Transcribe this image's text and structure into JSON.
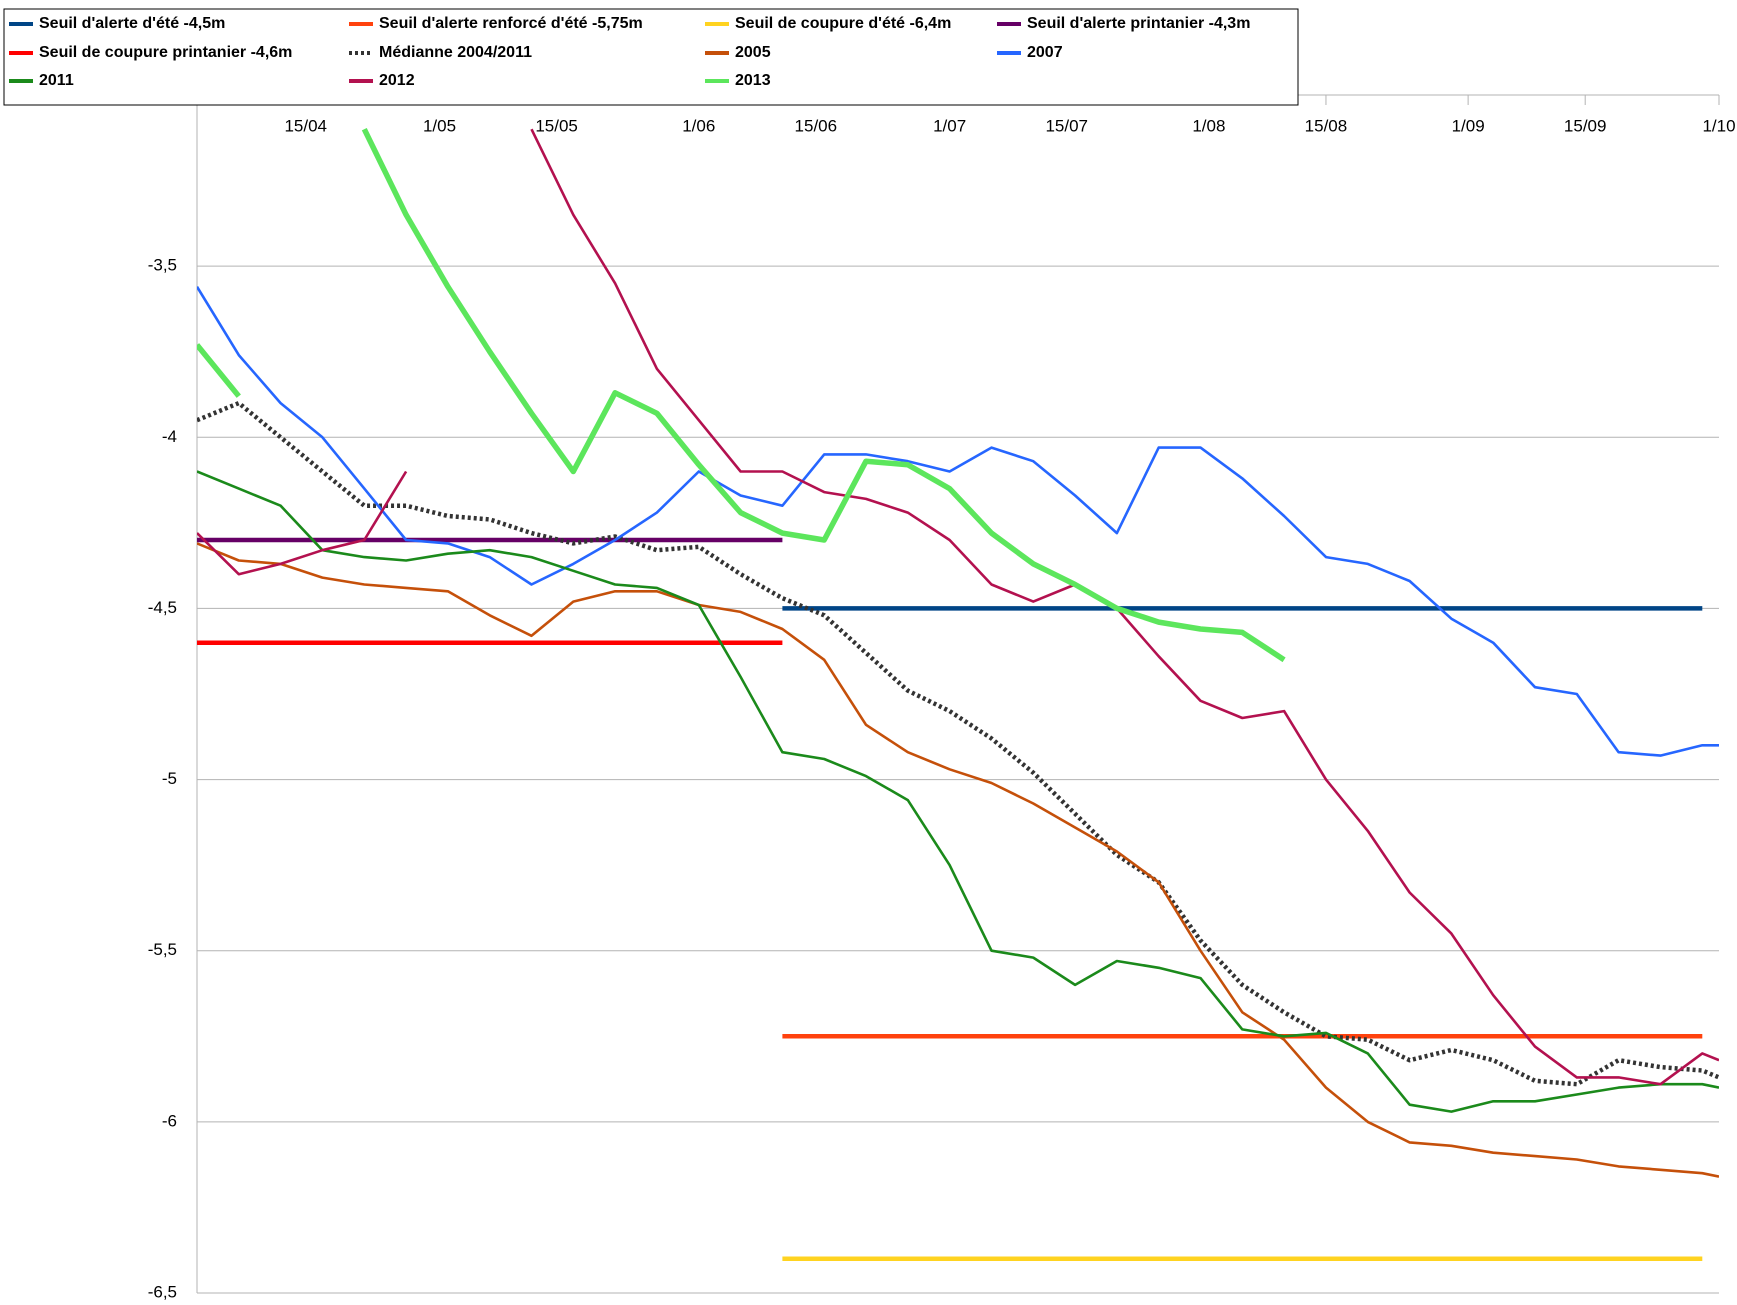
{
  "chart_data": {
    "type": "line",
    "x": [
      "2/04",
      "7/04",
      "12/04",
      "17/04",
      "22/04",
      "27/04",
      "2/05",
      "7/05",
      "12/05",
      "17/05",
      "22/05",
      "27/05",
      "1/06",
      "6/06",
      "11/06",
      "16/06",
      "21/06",
      "26/06",
      "1/07",
      "6/07",
      "11/07",
      "16/07",
      "21/07",
      "26/07",
      "31/07",
      "5/08",
      "10/08",
      "15/08",
      "20/08",
      "25/08",
      "30/08",
      "4/09",
      "9/09",
      "14/09",
      "19/09",
      "24/09",
      "29/09",
      "1/10"
    ],
    "xlim": [
      "2/04",
      "1/10"
    ],
    "xticks": [
      "15/04",
      "1/05",
      "15/05",
      "1/06",
      "15/06",
      "1/07",
      "15/07",
      "1/08",
      "15/08",
      "1/09",
      "15/09",
      "1/10"
    ],
    "ylim": [
      -6.5,
      -3
    ],
    "yticks": [
      {
        "value": -3.5,
        "label": "-3,5"
      },
      -4,
      {
        "value": -4.5,
        "label": "-4,5"
      },
      -5,
      {
        "value": -5.5,
        "label": "-5,5"
      },
      -6,
      {
        "value": -6.5,
        "label": "-6,5"
      }
    ],
    "grid": true,
    "legend": "top-left",
    "series": [
      {
        "name": "Seuil d'alerte d'été -4,5m",
        "color": "#004586",
        "values": [
          null,
          null,
          null,
          null,
          null,
          null,
          null,
          null,
          null,
          null,
          null,
          null,
          null,
          null,
          -4.5,
          -4.5,
          -4.5,
          -4.5,
          -4.5,
          -4.5,
          -4.5,
          -4.5,
          -4.5,
          -4.5,
          -4.5,
          -4.5,
          -4.5,
          -4.5,
          -4.5,
          -4.5,
          -4.5,
          -4.5,
          -4.5,
          -4.5,
          -4.5,
          -4.5,
          -4.5,
          null
        ]
      },
      {
        "name": "Seuil d'alerte renforcé d'été -5,75m",
        "color": "#ff420e",
        "values": [
          null,
          null,
          null,
          null,
          null,
          null,
          null,
          null,
          null,
          null,
          null,
          null,
          null,
          null,
          -5.75,
          -5.75,
          -5.75,
          -5.75,
          -5.75,
          -5.75,
          -5.75,
          -5.75,
          -5.75,
          -5.75,
          -5.75,
          -5.75,
          -5.75,
          -5.75,
          -5.75,
          -5.75,
          -5.75,
          -5.75,
          -5.75,
          -5.75,
          -5.75,
          -5.75,
          -5.75,
          null
        ]
      },
      {
        "name": "Seuil de coupure d'été -6,4m",
        "color": "#ffd320",
        "values": [
          null,
          null,
          null,
          null,
          null,
          null,
          null,
          null,
          null,
          null,
          null,
          null,
          null,
          null,
          -6.4,
          -6.4,
          -6.4,
          -6.4,
          -6.4,
          -6.4,
          -6.4,
          -6.4,
          -6.4,
          -6.4,
          -6.4,
          -6.4,
          -6.4,
          -6.4,
          -6.4,
          -6.4,
          -6.4,
          -6.4,
          -6.4,
          -6.4,
          -6.4,
          -6.4,
          -6.4,
          null
        ]
      },
      {
        "name": "Seuil d'alerte printanier -4,3m",
        "color": "#660066",
        "values": [
          -4.3,
          -4.3,
          -4.3,
          -4.3,
          -4.3,
          -4.3,
          -4.3,
          -4.3,
          -4.3,
          -4.3,
          -4.3,
          -4.3,
          -4.3,
          -4.3,
          -4.3,
          null,
          null,
          null,
          null,
          null,
          null,
          null,
          null,
          null,
          null,
          null,
          null,
          null,
          null,
          null,
          null,
          null,
          null,
          null,
          null,
          null,
          null,
          null
        ]
      },
      {
        "name": "Seuil de coupure printanier -4,6m",
        "color": "#ff0000",
        "values": [
          -4.6,
          -4.6,
          -4.6,
          -4.6,
          -4.6,
          -4.6,
          -4.6,
          -4.6,
          -4.6,
          -4.6,
          -4.6,
          -4.6,
          -4.6,
          -4.6,
          -4.6,
          null,
          null,
          null,
          null,
          null,
          null,
          null,
          null,
          null,
          null,
          null,
          null,
          null,
          null,
          null,
          null,
          null,
          null,
          null,
          null,
          null,
          null,
          null
        ]
      },
      {
        "name": "Médianne 2004/2011",
        "color": "#333333",
        "dashed": true,
        "values": [
          -3.95,
          -3.9,
          -4.0,
          -4.1,
          -4.2,
          -4.2,
          -4.23,
          -4.24,
          -4.28,
          -4.31,
          -4.29,
          -4.33,
          -4.32,
          -4.4,
          -4.47,
          -4.52,
          -4.63,
          -4.74,
          -4.8,
          -4.88,
          -4.98,
          -5.1,
          -5.22,
          -5.3,
          -5.47,
          -5.6,
          -5.68,
          -5.75,
          -5.76,
          -5.82,
          -5.79,
          -5.82,
          -5.88,
          -5.89,
          -5.82,
          -5.84,
          -5.85,
          -5.87
        ]
      },
      {
        "name": "2005",
        "color": "#c5500a",
        "values": [
          -4.31,
          -4.36,
          -4.37,
          -4.41,
          -4.43,
          -4.44,
          -4.45,
          -4.52,
          -4.58,
          -4.48,
          -4.45,
          -4.45,
          -4.49,
          -4.51,
          -4.56,
          -4.65,
          -4.84,
          -4.92,
          -4.97,
          -5.01,
          -5.07,
          -5.14,
          -5.21,
          -5.3,
          -5.5,
          -5.68,
          -5.76,
          -5.9,
          -6.0,
          -6.06,
          -6.07,
          -6.09,
          -6.1,
          -6.11,
          -6.13,
          -6.14,
          -6.15,
          -6.16
        ]
      },
      {
        "name": "2007",
        "color": "#2666ff",
        "values": [
          -3.56,
          -3.76,
          -3.9,
          -4.0,
          -4.15,
          -4.3,
          -4.31,
          -4.35,
          -4.43,
          -4.37,
          -4.3,
          -4.22,
          -4.1,
          -4.17,
          -4.2,
          -4.05,
          -4.05,
          -4.07,
          -4.1,
          -4.03,
          -4.07,
          -4.17,
          -4.28,
          -4.03,
          -4.03,
          -4.12,
          -4.23,
          -4.35,
          -4.37,
          -4.42,
          -4.53,
          -4.6,
          -4.73,
          -4.75,
          -4.92,
          -4.93,
          -4.9,
          -4.9
        ]
      },
      {
        "name": "2011",
        "color": "#1b8a1b",
        "values": [
          -4.1,
          -4.15,
          -4.2,
          -4.33,
          -4.35,
          -4.36,
          -4.34,
          -4.33,
          -4.35,
          -4.39,
          -4.43,
          -4.44,
          -4.49,
          -4.7,
          -4.92,
          -4.94,
          -4.99,
          -5.06,
          -5.25,
          -5.5,
          -5.52,
          -5.6,
          -5.53,
          -5.55,
          -5.58,
          -5.73,
          -5.75,
          -5.74,
          -5.8,
          -5.95,
          -5.97,
          -5.94,
          -5.94,
          -5.92,
          -5.9,
          -5.89,
          -5.89,
          -5.9
        ]
      },
      {
        "name": "2012",
        "color": "#b3114f",
        "values": [
          -4.28,
          -4.4,
          -4.37,
          -4.33,
          -4.3,
          -4.1,
          null,
          null,
          -3.1,
          -3.35,
          -3.55,
          -3.8,
          -3.95,
          -4.1,
          -4.1,
          -4.16,
          -4.18,
          -4.22,
          -4.3,
          -4.43,
          -4.48,
          -4.43,
          -4.5,
          -4.64,
          -4.77,
          -4.82,
          -4.8,
          -5.0,
          -5.15,
          -5.33,
          -5.45,
          -5.63,
          -5.78,
          -5.87,
          -5.87,
          -5.89,
          -5.8,
          -5.82
        ]
      },
      {
        "name": "2013",
        "color": "#5ce65c",
        "thick": true,
        "values": [
          -3.73,
          -3.88,
          null,
          null,
          -3.1,
          -3.35,
          -3.56,
          -3.75,
          -3.93,
          -4.1,
          -3.87,
          -3.93,
          -4.08,
          -4.22,
          -4.28,
          -4.3,
          -4.07,
          -4.08,
          -4.15,
          -4.28,
          -4.37,
          -4.43,
          -4.5,
          -4.54,
          -4.56,
          -4.57,
          -4.65,
          null,
          null,
          null,
          null,
          null,
          null,
          null,
          null,
          null,
          null,
          null
        ]
      }
    ]
  }
}
